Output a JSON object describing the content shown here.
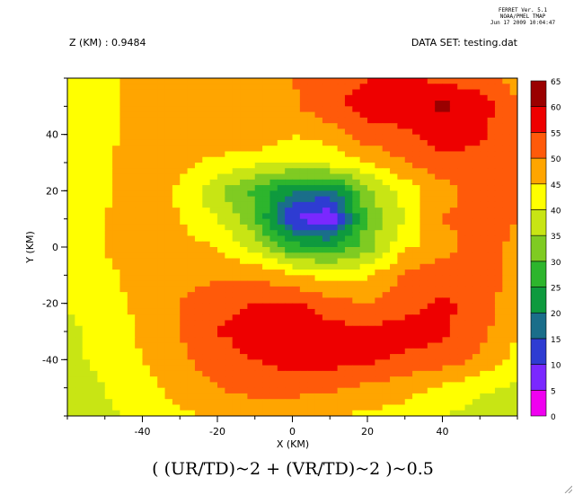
{
  "header": {
    "version_line1": "FERRET Ver. 5.1",
    "version_line2": "NOAA/PMEL TMAP",
    "version_line3": "Jun 17 2009 10:04:47",
    "z_label": "Z (KM) : 0.9484",
    "dataset_label": "DATA SET: testing.dat"
  },
  "chart_data": {
    "type": "heatmap",
    "title": "( (UR/TD)~2 + (VR/TD)~2 )~0.5",
    "xlabel": "X (KM)",
    "ylabel": "Y (KM)",
    "xlim": [
      -60,
      60
    ],
    "ylim": [
      -60,
      60
    ],
    "xticks": [
      -40,
      -20,
      0,
      20,
      40
    ],
    "yticks": [
      -40,
      -20,
      0,
      20,
      40
    ],
    "colorbar": {
      "levels": [
        0,
        5,
        10,
        15,
        20,
        25,
        30,
        35,
        40,
        45,
        50,
        55,
        60,
        65
      ],
      "colors": [
        "#f000f0",
        "#7a28ff",
        "#2e3cd2",
        "#1a6e8a",
        "#0e9a3e",
        "#2db52d",
        "#7fcb22",
        "#c8e514",
        "#ffff00",
        "#ffa500",
        "#ff5a0a",
        "#ee0000",
        "#9a0000"
      ]
    },
    "approximate_field": {
      "description_levels": "contour-filled field; core minimum near (8, 11) about 0-5, green ring 20-35 around center, yellow ring 40-45, red band 55-60 to the north-east and south, local max 60-65 near (42, 40)",
      "grid_x": [
        -60,
        -50,
        -40,
        -30,
        -20,
        -10,
        0,
        10,
        20,
        30,
        40,
        50,
        60
      ],
      "grid_y": [
        60,
        50,
        40,
        30,
        20,
        10,
        0,
        -10,
        -20,
        -30,
        -40,
        -50,
        -60
      ],
      "values": [
        [
          43,
          44,
          46,
          47,
          48,
          48,
          50,
          53,
          55,
          55,
          54,
          52,
          48
        ],
        [
          42,
          44,
          47,
          48,
          47,
          46,
          49,
          54,
          57,
          58,
          61,
          58,
          50
        ],
        [
          42,
          44,
          47,
          47,
          49,
          50,
          45,
          47,
          53,
          54,
          58,
          56,
          50
        ],
        [
          42,
          44,
          48,
          46,
          44,
          41,
          41,
          42,
          45,
          50,
          53,
          53,
          50
        ],
        [
          42,
          44,
          49,
          44,
          36,
          29,
          20,
          18,
          33,
          42,
          48,
          52,
          50
        ],
        [
          42,
          45,
          48,
          45,
          40,
          31,
          10,
          5,
          32,
          40,
          50,
          52,
          50
        ],
        [
          42,
          45,
          48,
          47,
          45,
          38,
          27,
          26,
          32,
          44,
          48,
          52,
          49
        ],
        [
          41,
          44,
          47,
          49,
          49,
          49,
          46,
          42,
          44,
          51,
          53,
          53,
          48
        ],
        [
          40,
          43,
          46,
          50,
          53,
          55,
          56,
          52,
          50,
          53,
          56,
          53,
          46
        ],
        [
          39,
          42,
          46,
          50,
          55,
          57,
          58,
          57,
          56,
          57,
          56,
          52,
          45
        ],
        [
          38,
          42,
          45,
          49,
          53,
          55,
          57,
          57,
          56,
          54,
          53,
          49,
          43
        ],
        [
          37,
          40,
          43,
          47,
          50,
          52,
          52,
          51,
          49,
          47,
          44,
          41,
          39
        ],
        [
          36,
          39,
          42,
          44,
          46,
          47,
          46,
          45,
          44,
          43,
          40,
          38,
          37
        ]
      ]
    }
  }
}
